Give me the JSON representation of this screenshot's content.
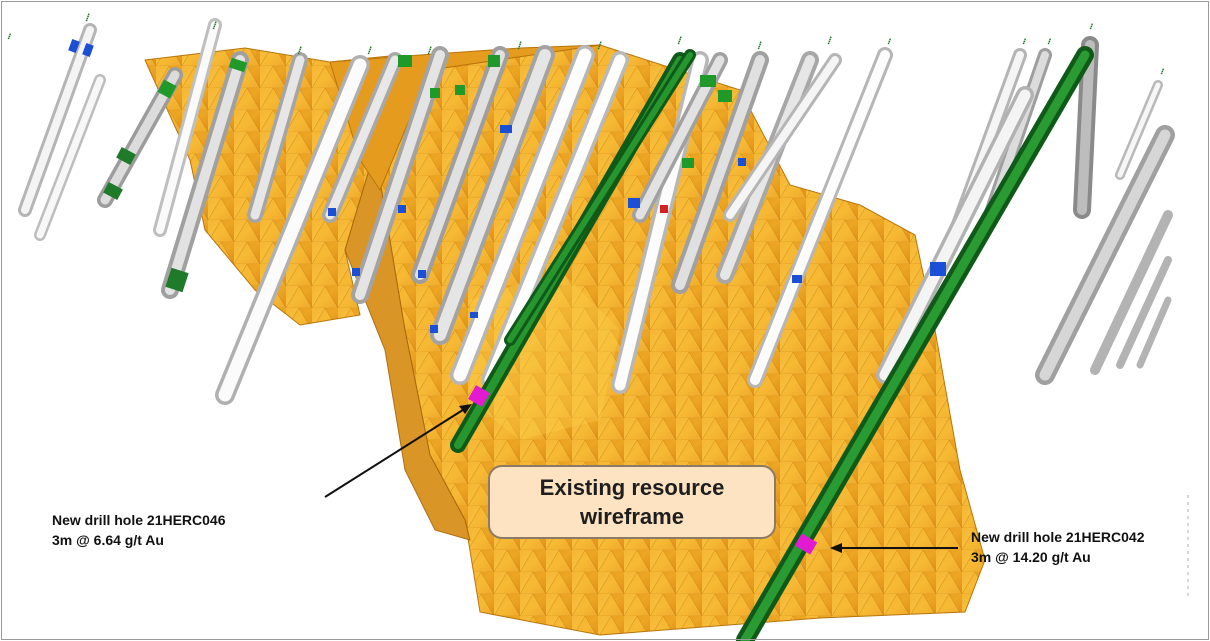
{
  "figure": {
    "callout": {
      "line1": "Existing resource",
      "line2": "wireframe"
    },
    "annotations": [
      {
        "hole_label": "New drill hole 21HERC046",
        "intercept": "3m @ 6.64 g/t Au"
      },
      {
        "hole_label": "New drill hole 21HERC042",
        "intercept": "3m @ 14.20 g/t Au"
      }
    ],
    "colors": {
      "wireframe": "#e8a21a",
      "drill_hole_existing": "#d9d9d9",
      "drill_hole_new": "#1f7a2a",
      "intercept_marker": "#e21ad2",
      "minor_intercept": "#1a4fd6",
      "background": "#ffffff"
    }
  }
}
